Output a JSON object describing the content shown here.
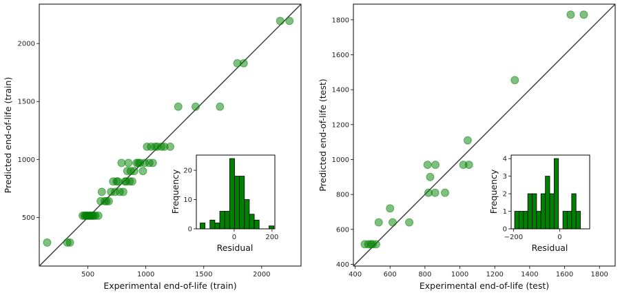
{
  "chart_data": [
    {
      "type": "scatter",
      "xlabel": "Experimental end-of-life (train)",
      "ylabel": "Predicted end-of-life (train)",
      "xlim": [
        80,
        2340
      ],
      "ylim": [
        80,
        2340
      ],
      "xticks": [
        500,
        1000,
        1500,
        2000
      ],
      "yticks": [
        500,
        1000,
        1500,
        2000
      ],
      "x": [
        148,
        322,
        345,
        455,
        470,
        480,
        490,
        500,
        510,
        520,
        530,
        540,
        550,
        565,
        590,
        610,
        620,
        645,
        660,
        680,
        700,
        718,
        735,
        748,
        760,
        775,
        790,
        805,
        820,
        830,
        840,
        850,
        860,
        870,
        882,
        900,
        920,
        935,
        950,
        975,
        990,
        1010,
        1030,
        1045,
        1060,
        1080,
        1100,
        1135,
        1160,
        1210,
        1280,
        1430,
        1640,
        1790,
        1845,
        2160,
        2240
      ],
      "y": [
        283,
        283,
        283,
        515,
        515,
        515,
        515,
        515,
        515,
        515,
        515,
        515,
        515,
        515,
        515,
        640,
        720,
        640,
        640,
        640,
        720,
        810,
        720,
        810,
        810,
        720,
        970,
        720,
        810,
        810,
        900,
        970,
        810,
        900,
        810,
        900,
        970,
        970,
        970,
        900,
        970,
        1110,
        970,
        1110,
        970,
        1110,
        1110,
        1110,
        1110,
        1110,
        1455,
        1455,
        1455,
        1830,
        1830,
        2195,
        2195
      ],
      "inset": {
        "type": "histogram",
        "xlabel": "Residual",
        "ylabel": "Frequency",
        "xlim": [
          -200,
          215
        ],
        "ylim": [
          0,
          25.2
        ],
        "xticks": [
          0,
          200
        ],
        "yticks": [
          0,
          10,
          20
        ],
        "bin_edges": [
          -180,
          -154,
          -128,
          -102,
          -76,
          -50,
          -24,
          2,
          28,
          54,
          80,
          106,
          132,
          158,
          184,
          210
        ],
        "counts": [
          2,
          0,
          3,
          2,
          6,
          6,
          24,
          18,
          18,
          10,
          5,
          3,
          0,
          0,
          1
        ]
      }
    },
    {
      "type": "scatter",
      "xlabel": "Experimental end-of-life (test)",
      "ylabel": "Predicted end-of-life (test)",
      "xlim": [
        390,
        1890
      ],
      "ylim": [
        390,
        1890
      ],
      "xticks": [
        400,
        600,
        800,
        1000,
        1200,
        1400,
        1600,
        1800
      ],
      "yticks": [
        400,
        600,
        800,
        1000,
        1200,
        1400,
        1600,
        1800
      ],
      "x": [
        455,
        475,
        490,
        500,
        520,
        535,
        600,
        615,
        710,
        815,
        820,
        830,
        858,
        860,
        915,
        1020,
        1045,
        1052,
        1315,
        1635,
        1710
      ],
      "y": [
        515,
        515,
        515,
        515,
        515,
        640,
        720,
        640,
        640,
        970,
        810,
        900,
        810,
        970,
        810,
        970,
        1110,
        970,
        1455,
        1830,
        1830
      ],
      "inset": {
        "type": "histogram",
        "xlabel": "Residual",
        "ylabel": "Frequency",
        "xlim": [
          -210,
          130
        ],
        "ylim": [
          0,
          4.2
        ],
        "xticks": [
          -200,
          0
        ],
        "yticks": [
          0,
          1,
          2,
          3,
          4
        ],
        "bin_edges": [
          -195,
          -176,
          -157,
          -138,
          -119,
          -100,
          -81,
          -62,
          -43,
          -24,
          -5,
          14,
          33,
          52,
          71,
          90,
          109
        ],
        "counts": [
          1,
          1,
          1,
          2,
          2,
          1,
          2,
          3,
          2,
          4,
          0,
          1,
          1,
          2,
          1,
          0
        ]
      }
    }
  ]
}
